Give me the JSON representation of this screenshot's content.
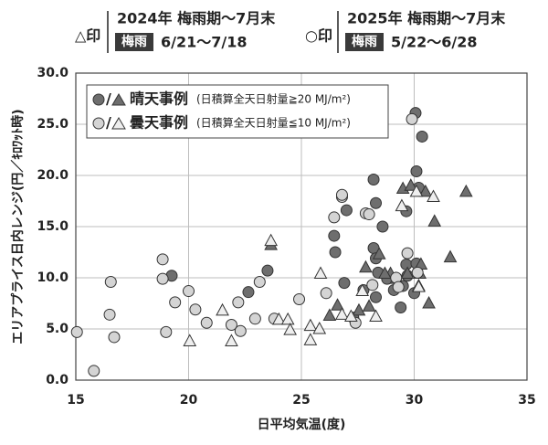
{
  "header": [
    {
      "marker_label": "△印",
      "period": "2024年 梅雨期～7月末",
      "tag": "梅雨",
      "dates": "6/21～7/18"
    },
    {
      "marker_label": "○印",
      "period": "2025年 梅雨期～7月末",
      "tag": "梅雨",
      "dates": "5/22～6/28"
    }
  ],
  "chart_data": {
    "type": "scatter",
    "xlabel": "日平均気温(度)",
    "ylabel": "エリアプライス日内レンジ(円／ｷﾛﾜｯﾄ時)",
    "xlim": [
      15,
      35
    ],
    "xticks": [
      15,
      20,
      25,
      30,
      35
    ],
    "ylim": [
      0,
      30
    ],
    "yticks": [
      {
        "value": 0,
        "label": "0.0"
      },
      {
        "value": 5,
        "label": "5.0"
      },
      {
        "value": 10,
        "label": "10.0"
      },
      {
        "value": 15,
        "label": "15.0"
      },
      {
        "value": 20,
        "label": "20.0"
      },
      {
        "value": 25,
        "label": "25.0"
      },
      {
        "value": 30,
        "label": "30.0"
      }
    ],
    "grid": true,
    "legend": [
      {
        "separator": "/",
        "label": "晴天事例",
        "note": "(日積算全天日射量≧20 MJ/m²)"
      },
      {
        "separator": "/",
        "label": "曇天事例",
        "note": "(日積算全天日射量≦10 MJ/m²)"
      }
    ],
    "series": [
      {
        "marker": "circle",
        "color": "#6e6e6e",
        "x": [
          22.65,
          23.5,
          19.25,
          26.45,
          26.5,
          27.0,
          26.9,
          28.2,
          28.3,
          28.6,
          28.2,
          28.3,
          28.4,
          28.8,
          27.75,
          28.3,
          27.3,
          29.65,
          30.06,
          30.1,
          30.35,
          30.2,
          29.65,
          29.7,
          29.5,
          29.4,
          30.0,
          29.1,
          30.1
        ],
        "values": [
          8.6,
          10.7,
          10.2,
          14.1,
          12.5,
          16.6,
          9.5,
          19.6,
          17.3,
          15.0,
          12.9,
          11.9,
          10.5,
          9.9,
          8.8,
          8.1,
          6.1,
          16.5,
          26.1,
          20.4,
          23.8,
          18.8,
          11.3,
          10.2,
          9.2,
          7.1,
          8.5,
          8.8,
          11.4
        ]
      },
      {
        "marker": "triangle",
        "color": "#6e6e6e",
        "x": [
          23.65,
          26.6,
          26.25,
          27.85,
          28.0,
          27.55,
          28.45,
          28.95,
          29.2,
          29.5,
          29.85,
          30.5,
          30.9,
          30.25,
          30.3,
          30.65,
          30.2,
          31.6,
          32.3,
          28.7,
          29.7
        ],
        "values": [
          13.2,
          7.3,
          6.3,
          11.0,
          7.2,
          6.8,
          12.3,
          10.4,
          9.9,
          18.7,
          19.0,
          18.4,
          15.5,
          10.4,
          11.3,
          7.5,
          9.2,
          12.0,
          18.4,
          10.4,
          10.4
        ]
      },
      {
        "marker": "circle",
        "color": "#d4d4d4",
        "x": [
          15.05,
          15.8,
          16.55,
          16.5,
          16.7,
          18.85,
          18.85,
          19.0,
          19.4,
          20.0,
          20.3,
          20.8,
          21.9,
          22.2,
          22.3,
          22.95,
          23.15,
          23.8,
          24.9,
          26.1,
          26.45,
          26.8,
          26.8,
          27.4,
          27.85,
          28.0,
          28.15,
          29.7,
          29.9,
          29.2,
          29.3,
          30.15
        ],
        "values": [
          4.7,
          0.9,
          9.6,
          6.4,
          4.2,
          11.8,
          9.9,
          4.7,
          7.6,
          8.7,
          6.9,
          5.6,
          5.4,
          7.6,
          4.8,
          6.0,
          9.6,
          6.0,
          7.9,
          8.5,
          15.9,
          17.9,
          18.1,
          5.6,
          16.3,
          16.2,
          9.3,
          12.4,
          25.5,
          10.0,
          9.1,
          10.5
        ]
      },
      {
        "marker": "triangle",
        "color": "#eeeeee",
        "x": [
          20.05,
          21.5,
          21.9,
          23.65,
          24.0,
          24.4,
          24.5,
          25.4,
          25.4,
          25.8,
          25.85,
          26.8,
          27.2,
          27.7,
          28.3,
          29.45,
          30.1,
          30.85,
          30.2
        ],
        "values": [
          3.8,
          6.8,
          3.8,
          13.6,
          5.9,
          5.9,
          4.9,
          5.3,
          3.9,
          5.0,
          10.4,
          6.4,
          6.2,
          8.7,
          6.2,
          17.0,
          18.4,
          17.9,
          9.1
        ]
      }
    ]
  }
}
